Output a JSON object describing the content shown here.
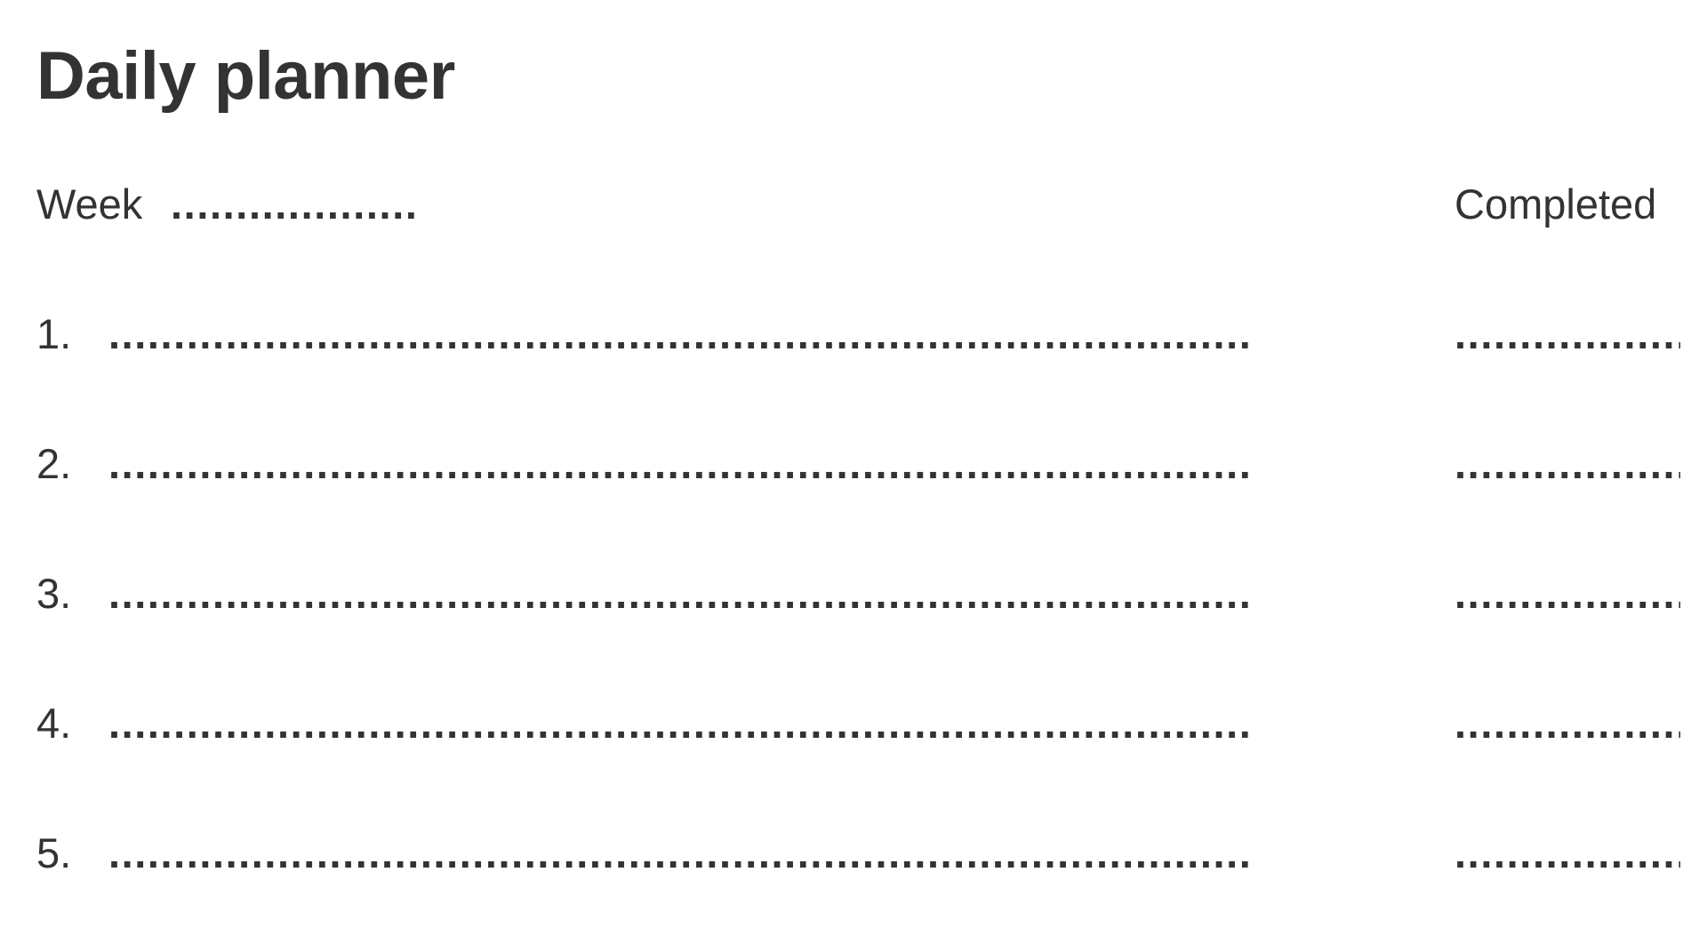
{
  "title": "Daily planner",
  "week": {
    "label": "Week",
    "field": "..................."
  },
  "completed_header": "Completed",
  "tasks": [
    {
      "number": "1.",
      "line": "..............................................................................................",
      "completed": ".................."
    },
    {
      "number": "2.",
      "line": "..............................................................................................",
      "completed": ".................."
    },
    {
      "number": "3.",
      "line": "..............................................................................................",
      "completed": ".................."
    },
    {
      "number": "4.",
      "line": "..............................................................................................",
      "completed": ".................."
    },
    {
      "number": "5.",
      "line": "..............................................................................................",
      "completed": ".................."
    }
  ]
}
